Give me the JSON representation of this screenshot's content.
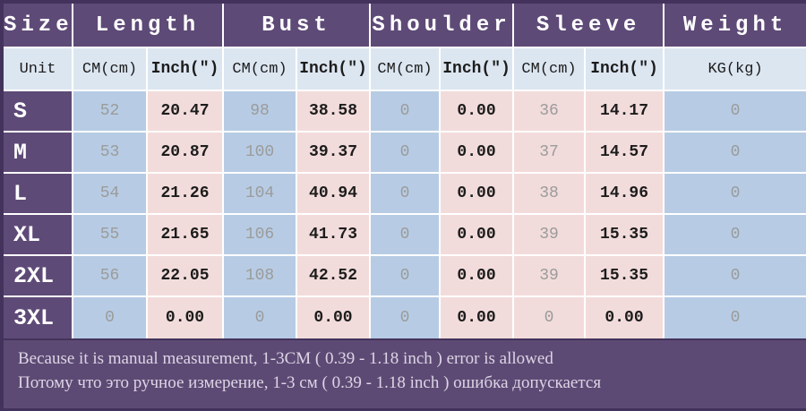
{
  "chart_data": {
    "type": "table",
    "corner_label": "Size",
    "unit_row_label": "Unit",
    "groups": [
      {
        "label": "Length",
        "units": [
          "CM(cm)",
          "Inch(″)"
        ]
      },
      {
        "label": "Bust",
        "units": [
          "CM(cm)",
          "Inch(″)"
        ]
      },
      {
        "label": "Shoulder",
        "units": [
          "CM(cm)",
          "Inch(″)"
        ]
      },
      {
        "label": "Sleeve",
        "units": [
          "CM(cm)",
          "Inch(″)"
        ]
      },
      {
        "label": "Weight",
        "units": [
          "KG(kg)"
        ]
      }
    ],
    "rows": [
      {
        "size": "S",
        "values": [
          "52",
          "20.47",
          "98",
          "38.58",
          "0",
          "0.00",
          "36",
          "14.17",
          "0"
        ]
      },
      {
        "size": "M",
        "values": [
          "53",
          "20.87",
          "100",
          "39.37",
          "0",
          "0.00",
          "37",
          "14.57",
          "0"
        ]
      },
      {
        "size": "L",
        "values": [
          "54",
          "21.26",
          "104",
          "40.94",
          "0",
          "0.00",
          "38",
          "14.96",
          "0"
        ]
      },
      {
        "size": "XL",
        "values": [
          "55",
          "21.65",
          "106",
          "41.73",
          "0",
          "0.00",
          "39",
          "15.35",
          "0"
        ]
      },
      {
        "size": "2XL",
        "values": [
          "56",
          "22.05",
          "108",
          "42.52",
          "0",
          "0.00",
          "39",
          "15.35",
          "0"
        ]
      },
      {
        "size": "3XL",
        "values": [
          "0",
          "0.00",
          "0",
          "0.00",
          "0",
          "0.00",
          "0",
          "0.00",
          "0"
        ]
      }
    ],
    "notes": [
      "Because it is manual measurement, 1-3CM ( 0.39 - 1.18 inch ) error is allowed",
      "Потому что это ручное измерение, 1-3 см ( 0.39 - 1.18 inch ) ошибка допускается"
    ]
  },
  "colors": {
    "header_purple": "#5e4a77",
    "panel_purple": "#5d4a74",
    "dark_edge": "#43335c",
    "light_blue": "#dce6f1",
    "mid_blue": "#b7cce4",
    "pink": "#f2dcdb",
    "grid_line": "#ffffff",
    "muted_value": "#9b9b9b",
    "ink": "#1c1c1c",
    "note_text": "#ddd5e6"
  }
}
